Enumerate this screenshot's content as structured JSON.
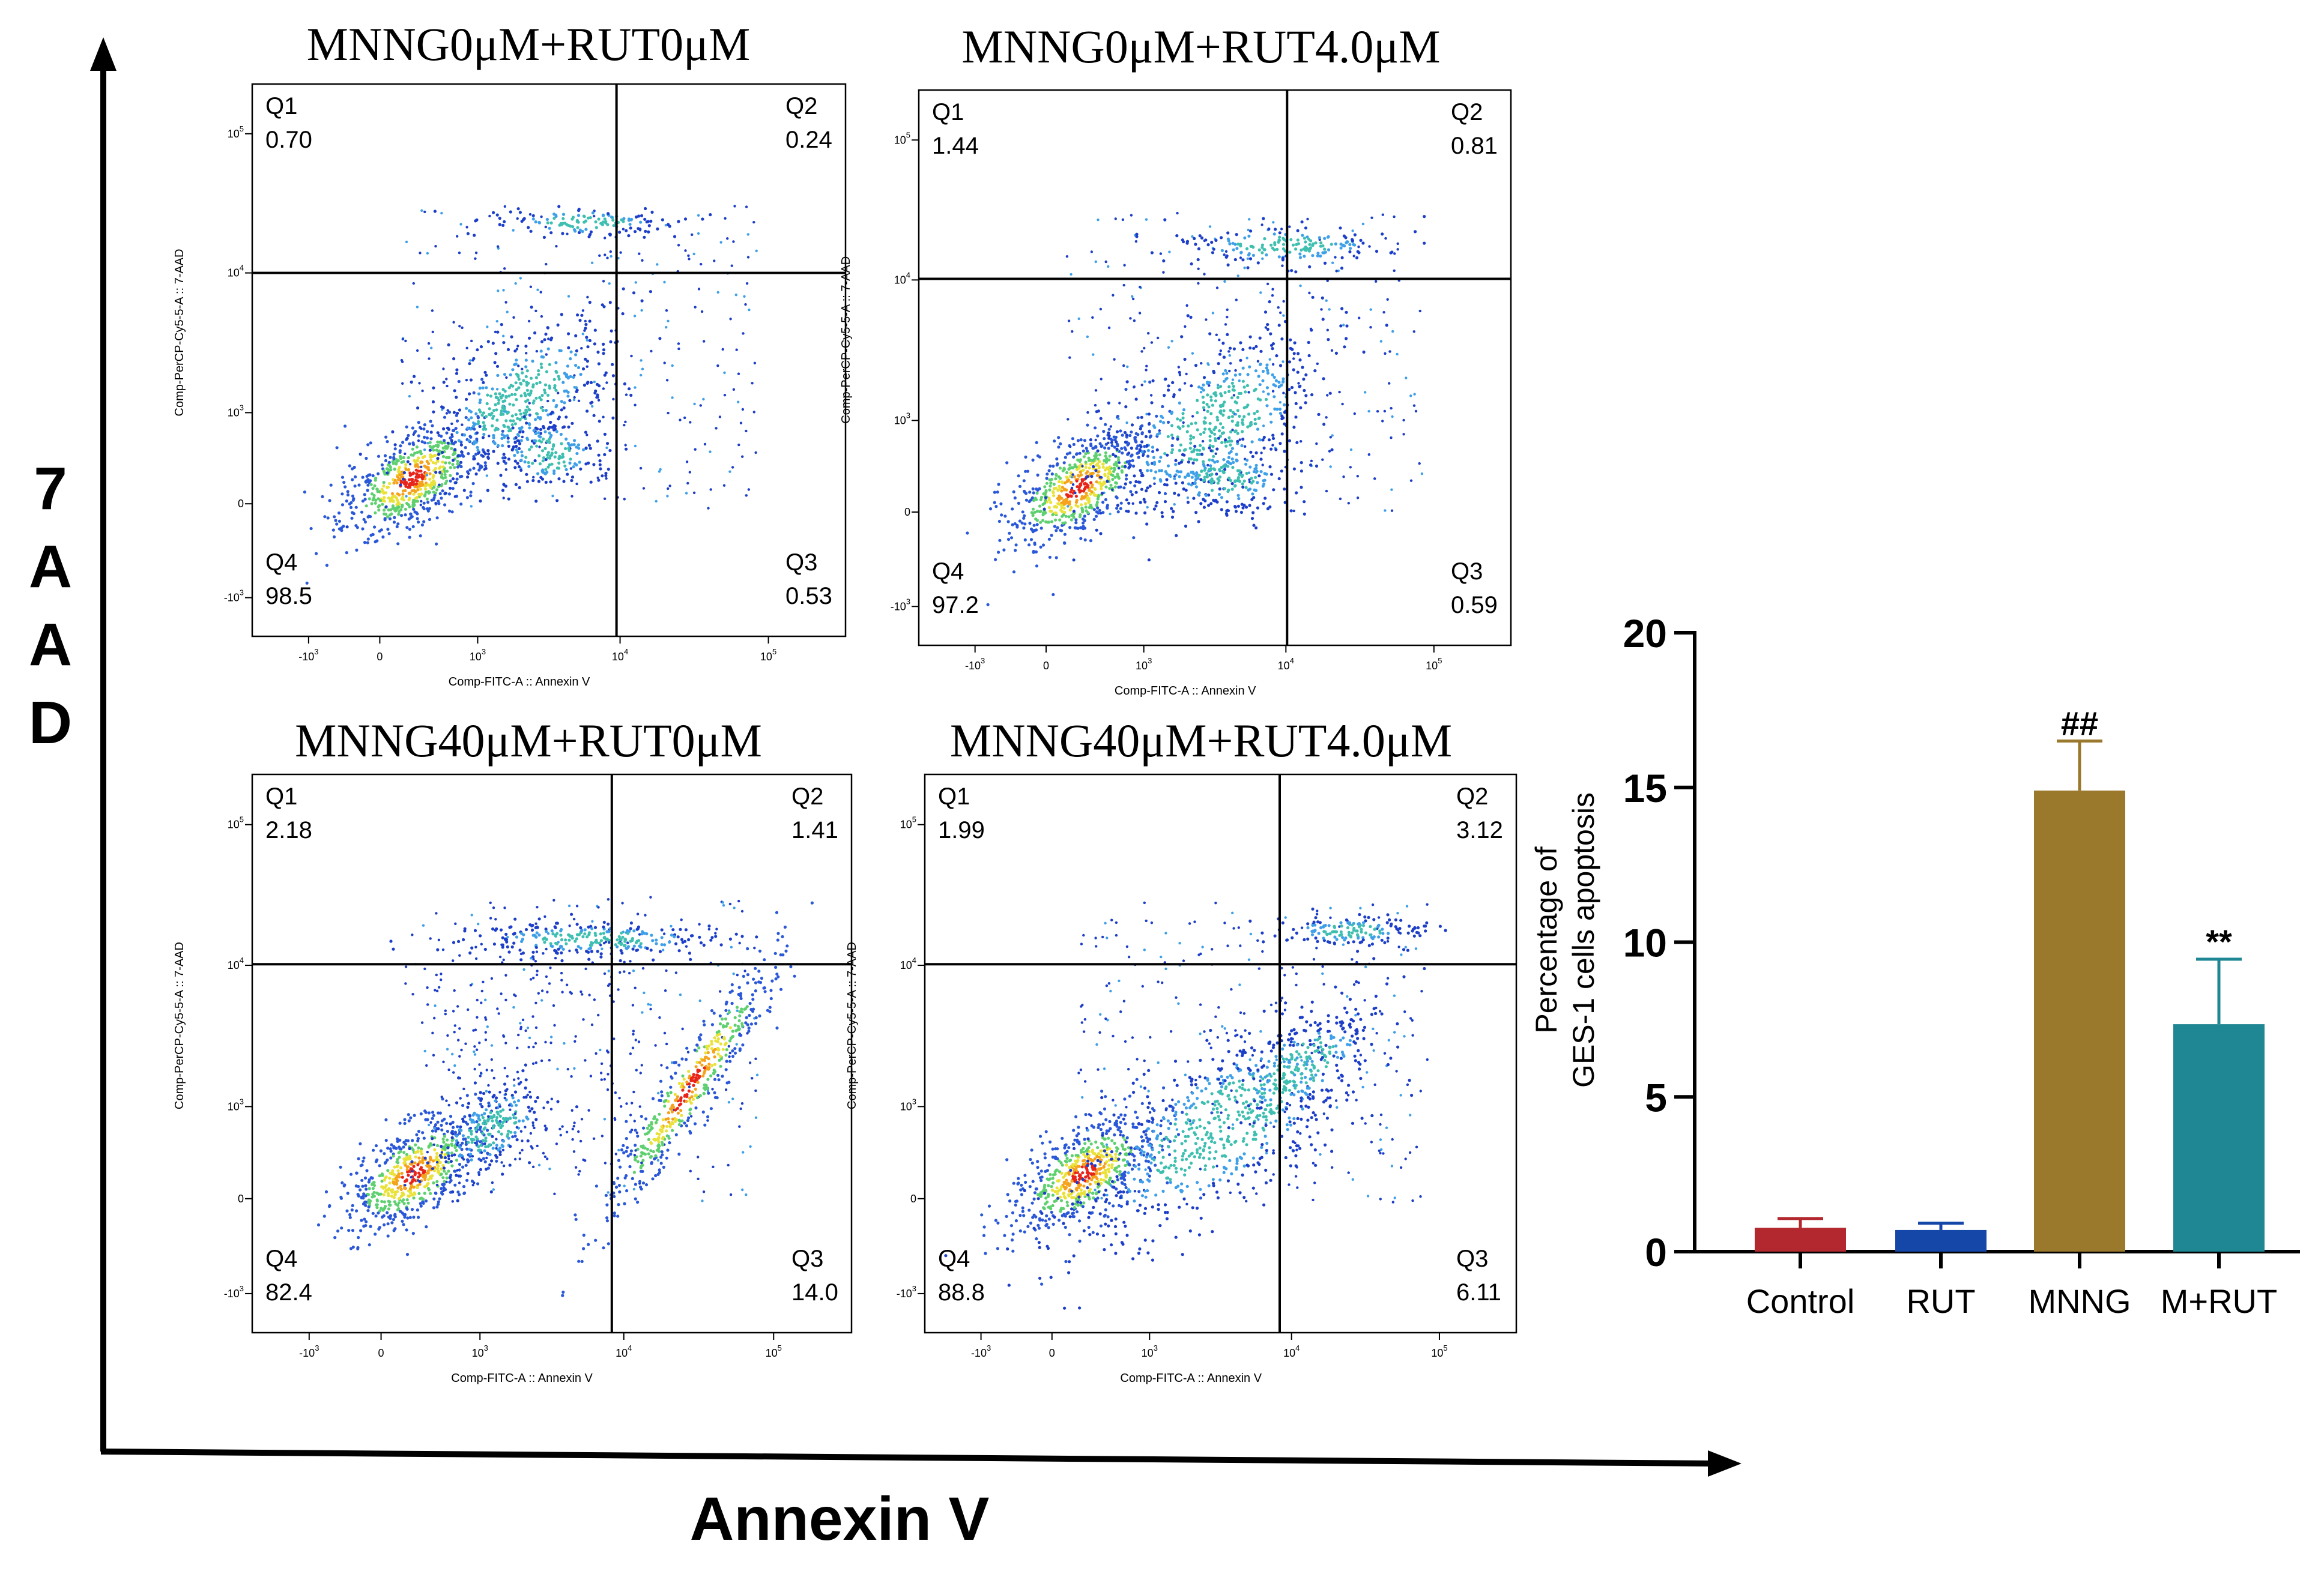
{
  "global_axes": {
    "y_title_letters": [
      "7",
      "A",
      "A",
      "D"
    ],
    "x_title": "Annexin V"
  },
  "flow_panels": [
    {
      "title": "MNNG0μM+RUT0μM",
      "x_axis_label": "Comp-FITC-A :: Annexin V",
      "y_axis_label": "Comp-PerCP-Cy5-5-A :: 7-AAD",
      "x_ticks": [
        "-10",
        "0",
        "10",
        "10",
        "10"
      ],
      "x_tick_exps": [
        "3",
        "",
        "3",
        "4",
        "5"
      ],
      "y_ticks": [
        "-10",
        "0",
        "10",
        "10",
        "10"
      ],
      "y_tick_exps": [
        "3",
        "",
        "3",
        "4",
        "5"
      ],
      "quadrants": {
        "Q1": {
          "label": "Q1",
          "value": "0.70"
        },
        "Q2": {
          "label": "Q2",
          "value": "0.24"
        },
        "Q3": {
          "label": "Q3",
          "value": "0.53"
        },
        "Q4": {
          "label": "Q4",
          "value": "98.5"
        }
      },
      "pattern": "control"
    },
    {
      "title": "MNNG0μM+RUT4.0μM",
      "x_axis_label": "Comp-FITC-A :: Annexin V",
      "y_axis_label": "Comp-PerCP-Cy5-5-A :: 7-AAD",
      "x_ticks": [
        "-10",
        "0",
        "10",
        "10",
        "10"
      ],
      "x_tick_exps": [
        "3",
        "",
        "3",
        "4",
        "5"
      ],
      "y_ticks": [
        "-10",
        "0",
        "10",
        "10",
        "10"
      ],
      "y_tick_exps": [
        "3",
        "",
        "3",
        "4",
        "5"
      ],
      "quadrants": {
        "Q1": {
          "label": "Q1",
          "value": "1.44"
        },
        "Q2": {
          "label": "Q2",
          "value": "0.81"
        },
        "Q3": {
          "label": "Q3",
          "value": "0.59"
        },
        "Q4": {
          "label": "Q4",
          "value": "97.2"
        }
      },
      "pattern": "rut"
    },
    {
      "title": "MNNG40μM+RUT0μM",
      "x_axis_label": "Comp-FITC-A :: Annexin V",
      "y_axis_label": "Comp-PerCP-Cy5-5-A :: 7-AAD",
      "x_ticks": [
        "-10",
        "0",
        "10",
        "10",
        "10"
      ],
      "x_tick_exps": [
        "3",
        "",
        "3",
        "4",
        "5"
      ],
      "y_ticks": [
        "-10",
        "0",
        "10",
        "10",
        "10"
      ],
      "y_tick_exps": [
        "3",
        "",
        "3",
        "4",
        "5"
      ],
      "quadrants": {
        "Q1": {
          "label": "Q1",
          "value": "2.18"
        },
        "Q2": {
          "label": "Q2",
          "value": "1.41"
        },
        "Q3": {
          "label": "Q3",
          "value": "14.0"
        },
        "Q4": {
          "label": "Q4",
          "value": "82.4"
        }
      },
      "pattern": "mnng"
    },
    {
      "title": "MNNG40μM+RUT4.0μM",
      "x_axis_label": "Comp-FITC-A :: Annexin V",
      "y_axis_label": "Comp-PerCP-Cy5-5-A :: 7-AAD",
      "x_ticks": [
        "-10",
        "0",
        "10",
        "10",
        "10"
      ],
      "x_tick_exps": [
        "3",
        "",
        "3",
        "4",
        "5"
      ],
      "y_ticks": [
        "-10",
        "0",
        "10",
        "10",
        "10"
      ],
      "y_tick_exps": [
        "3",
        "",
        "3",
        "4",
        "5"
      ],
      "quadrants": {
        "Q1": {
          "label": "Q1",
          "value": "1.99"
        },
        "Q2": {
          "label": "Q2",
          "value": "3.12"
        },
        "Q3": {
          "label": "Q3",
          "value": "6.11"
        },
        "Q4": {
          "label": "Q4",
          "value": "88.8"
        }
      },
      "pattern": "mrut"
    }
  ],
  "chart_data": {
    "type": "bar",
    "categories": [
      "Control",
      "RUT",
      "MNNG",
      "M+RUT"
    ],
    "values": [
      0.77,
      0.7,
      14.9,
      7.35
    ],
    "errors": [
      0.3,
      0.22,
      1.6,
      2.1
    ],
    "annotations": [
      "",
      "",
      "##",
      "**"
    ],
    "colors": [
      "#b2282e",
      "#1547a8",
      "#9a782c",
      "#1f8693"
    ],
    "ylabel_line1": "Percentage of",
    "ylabel_line2": "GES-1 cells apoptosis",
    "ylim": [
      0,
      20
    ],
    "yticks": [
      0,
      5,
      10,
      15,
      20
    ],
    "grid": false
  }
}
